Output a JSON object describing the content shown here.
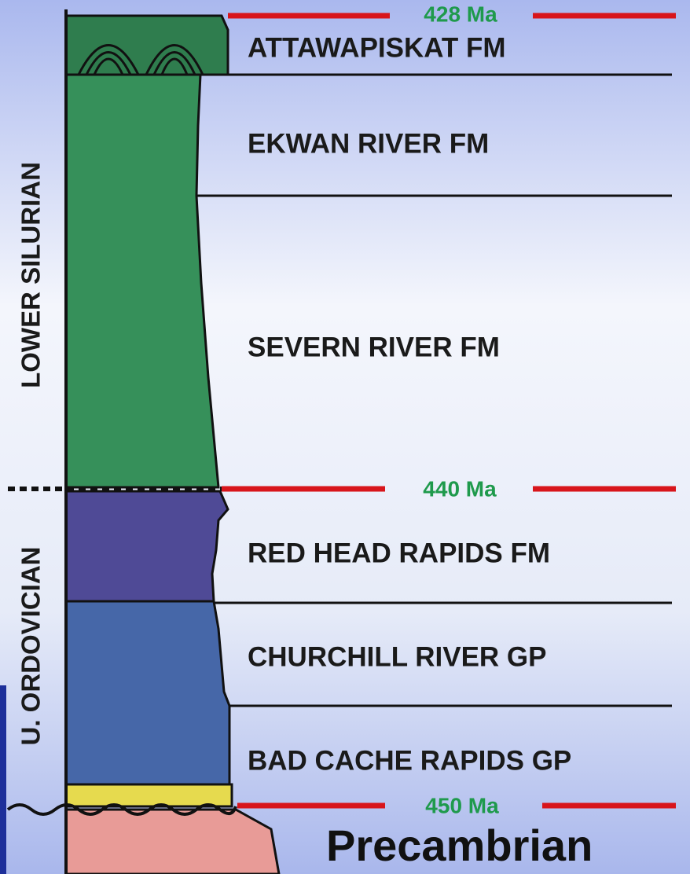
{
  "ages": [
    "428 Ma",
    "440 Ma",
    "450 Ma"
  ],
  "periods": [
    "LOWER SILURIAN",
    "U. ORDOVICIAN"
  ],
  "units": [
    {
      "label": "ATTAWAPISKAT FM"
    },
    {
      "label": "EKWAN RIVER FM"
    },
    {
      "label": "SEVERN RIVER FM"
    },
    {
      "label": "RED HEAD RAPIDS FM"
    },
    {
      "label": "CHURCHILL RIVER GP"
    },
    {
      "label": "BAD CACHE RAPIDS GP"
    }
  ],
  "basement": "Precambrian"
}
